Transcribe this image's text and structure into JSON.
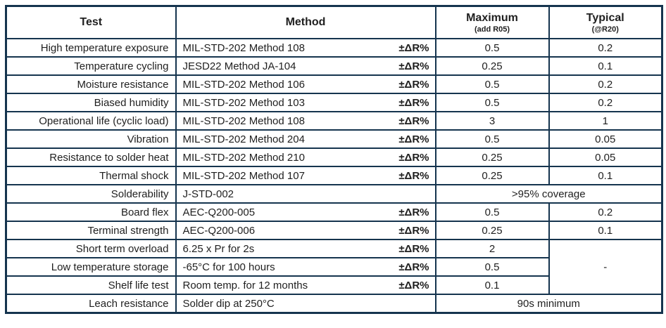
{
  "colors": {
    "border": "#15344e",
    "text": "#1f1f1f"
  },
  "table": {
    "headers": {
      "test": "Test",
      "method": "Method",
      "maximum": "Maximum",
      "maximum_sub": "(add R05)",
      "typical": "Typical",
      "typical_sub": "(@R20)"
    },
    "rows": [
      {
        "test": "High temperature exposure",
        "method": "MIL-STD-202 Method 108",
        "delta": "±ΔR%",
        "maximum": "0.5",
        "typical": "0.2"
      },
      {
        "test": "Temperature cycling",
        "method": "JESD22 Method JA-104",
        "delta": "±ΔR%",
        "maximum": "0.25",
        "typical": "0.1"
      },
      {
        "test": "Moisture resistance",
        "method": "MIL-STD-202 Method 106",
        "delta": "±ΔR%",
        "maximum": "0.5",
        "typical": "0.2"
      },
      {
        "test": "Biased humidity",
        "method": "MIL-STD-202 Method 103",
        "delta": "±ΔR%",
        "maximum": "0.5",
        "typical": "0.2"
      },
      {
        "test": "Operational life (cyclic load)",
        "method": "MIL-STD-202 Method 108",
        "delta": "±ΔR%",
        "maximum": "3",
        "typical": "1"
      },
      {
        "test": "Vibration",
        "method": "MIL-STD-202 Method 204",
        "delta": "±ΔR%",
        "maximum": "0.5",
        "typical": "0.05"
      },
      {
        "test": "Resistance to solder heat",
        "method": "MIL-STD-202 Method 210",
        "delta": "±ΔR%",
        "maximum": "0.25",
        "typical": "0.05"
      },
      {
        "test": "Thermal shock",
        "method": "MIL-STD-202 Method 107",
        "delta": "±ΔR%",
        "maximum": "0.25",
        "typical": "0.1"
      },
      {
        "test": "Solderability",
        "method": "J-STD-002",
        "span": ">95% coverage"
      },
      {
        "test": "Board flex",
        "method": "AEC-Q200-005",
        "delta": "±ΔR%",
        "maximum": "0.5",
        "typical": "0.2"
      },
      {
        "test": "Terminal strength",
        "method": "AEC-Q200-006",
        "delta": "±ΔR%",
        "maximum": "0.25",
        "typical": "0.1"
      },
      {
        "test": "Short term overload",
        "method": "6.25 x Pr for 2s",
        "delta": "±ΔR%",
        "maximum": "2",
        "typical_span": "-"
      },
      {
        "test": "Low temperature storage",
        "method": "-65°C for 100 hours",
        "delta": "±ΔR%",
        "maximum": "0.5"
      },
      {
        "test": "Shelf life test",
        "method": "Room temp. for 12 months",
        "delta": "±ΔR%",
        "maximum": "0.1"
      },
      {
        "test": "Leach resistance",
        "method": "Solder dip at 250°C",
        "span": "90s minimum"
      }
    ]
  }
}
